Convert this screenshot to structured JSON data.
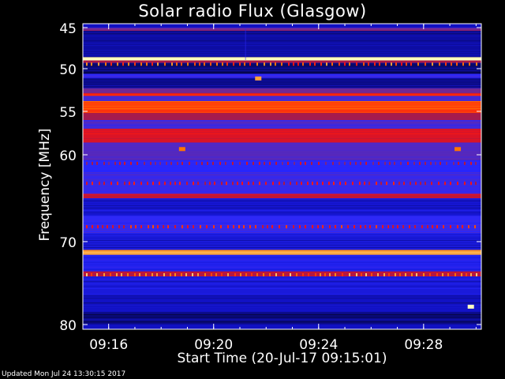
{
  "chart_data": {
    "type": "heatmap",
    "title": "Solar radio Flux (Glasgow)",
    "xlabel": "Start Time (20-Jul-17 09:15:01)",
    "ylabel": "Frequency [MHz]",
    "y_ticks": [
      45,
      50,
      55,
      60,
      70,
      80
    ],
    "ylim": [
      80,
      45
    ],
    "x_ticks": [
      {
        "label": "09:16",
        "minutes": 16
      },
      {
        "label": "09:20",
        "minutes": 20
      },
      {
        "label": "09:24",
        "minutes": 24
      },
      {
        "label": "09:28",
        "minutes": 28
      }
    ],
    "xlim_minutes": [
      15.017,
      30.2
    ],
    "bands": [
      {
        "from": 45.0,
        "to": 45.4,
        "level": 0.45
      },
      {
        "from": 45.4,
        "to": 48.6,
        "level": 0.12
      },
      {
        "from": 48.6,
        "to": 49.0,
        "level": 1.0
      },
      {
        "from": 49.0,
        "to": 49.3,
        "level": 0.55
      },
      {
        "from": 49.3,
        "to": 50.6,
        "level": 0.08
      },
      {
        "from": 50.6,
        "to": 51.1,
        "level": 0.3
      },
      {
        "from": 51.1,
        "to": 52.3,
        "level": 0.1
      },
      {
        "from": 52.3,
        "to": 52.9,
        "level": 0.45
      },
      {
        "from": 52.9,
        "to": 53.2,
        "level": 0.75
      },
      {
        "from": 53.2,
        "to": 53.8,
        "level": 0.35
      },
      {
        "from": 53.8,
        "to": 55.2,
        "level": 0.78
      },
      {
        "from": 55.2,
        "to": 56.0,
        "level": 0.55
      },
      {
        "from": 56.0,
        "to": 57.0,
        "level": 0.35
      },
      {
        "from": 57.0,
        "to": 58.6,
        "level": 0.65
      },
      {
        "from": 58.6,
        "to": 60.6,
        "level": 0.38
      },
      {
        "from": 60.6,
        "to": 62.0,
        "level": 0.28
      },
      {
        "from": 62.0,
        "to": 64.5,
        "level": 0.32
      },
      {
        "from": 64.5,
        "to": 65.0,
        "level": 0.62
      },
      {
        "from": 65.0,
        "to": 67.0,
        "level": 0.18
      },
      {
        "from": 67.0,
        "to": 69.0,
        "level": 0.3
      },
      {
        "from": 69.0,
        "to": 71.0,
        "level": 0.2
      },
      {
        "from": 71.0,
        "to": 71.6,
        "level": 0.9
      },
      {
        "from": 71.6,
        "to": 73.6,
        "level": 0.25
      },
      {
        "from": 73.6,
        "to": 74.2,
        "level": 0.6
      },
      {
        "from": 74.2,
        "to": 76.5,
        "level": 0.2
      },
      {
        "from": 76.5,
        "to": 78.5,
        "level": 0.15
      },
      {
        "from": 78.5,
        "to": 80.0,
        "level": 0.1
      }
    ],
    "colormap": [
      "#000000",
      "#1010c0",
      "#2828ff",
      "#6a2a9e",
      "#b01840",
      "#ff1010",
      "#ff7a00",
      "#ffffc0"
    ],
    "hotspots": [
      {
        "minutes": 18.8,
        "mhz": 59.3,
        "level": 0.85
      },
      {
        "minutes": 29.3,
        "mhz": 59.3,
        "level": 0.85
      },
      {
        "minutes": 21.7,
        "mhz": 51.1,
        "level": 0.9
      },
      {
        "minutes": 29.8,
        "mhz": 77.8,
        "level": 1.0
      }
    ]
  },
  "footer": {
    "updated": "Updated Mon Jul 24 13:30:15 2017"
  }
}
